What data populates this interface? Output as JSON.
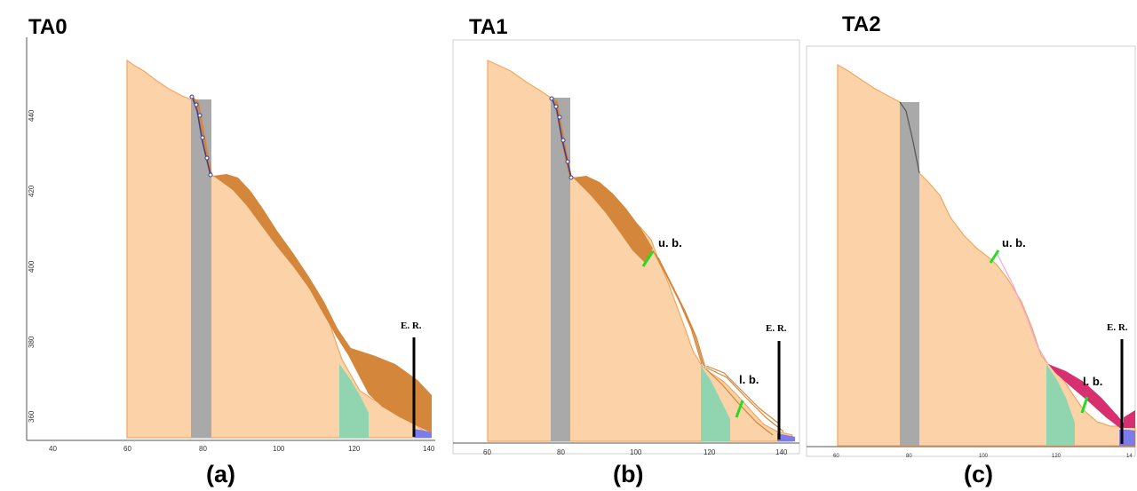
{
  "panels": [
    {
      "title": "TA0",
      "caption": "(a)",
      "x_ticks": [
        "40",
        "60",
        "80",
        "100",
        "120",
        "140"
      ],
      "y_ticks": [
        "360",
        "380",
        "400",
        "420",
        "440"
      ],
      "annotations": {
        "er": "E. R."
      }
    },
    {
      "title": "TA1",
      "caption": "(b)",
      "x_ticks": [
        "60",
        "80",
        "100",
        "120",
        "140"
      ],
      "annotations": {
        "ub": "u. b.",
        "lb": "l. b.",
        "er": "E. R."
      }
    },
    {
      "title": "TA2",
      "caption": "(c)",
      "x_ticks": [
        "60",
        "80",
        "100",
        "120",
        "14"
      ],
      "annotations": {
        "ub": "u. b.",
        "lb": "l. b.",
        "er": "E. R."
      }
    }
  ],
  "colors": {
    "terrain": "#fcd3a8",
    "terrain_outline": "#f0a860",
    "deposit": "#d4863a",
    "barrier_gray": "#a9a9a9",
    "green_zone": "#90d4b0",
    "blue_zone": "#7b7bea",
    "boundary_green": "#22dd22",
    "magenta_flow": "#d63070"
  }
}
